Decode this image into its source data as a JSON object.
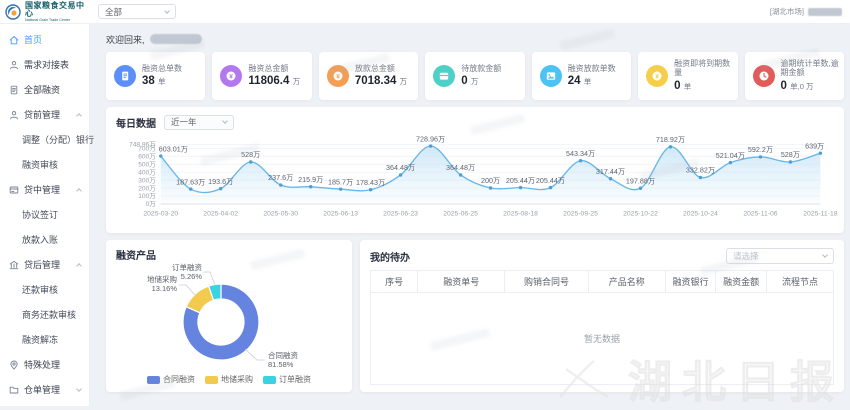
{
  "logo": {
    "title": "国家粮食交易中心",
    "subtitle": "National Grain Trade Center"
  },
  "header": {
    "market_select_value": "全部",
    "market_tag": "[湖北市场]"
  },
  "sidebar": {
    "items": [
      {
        "id": "home",
        "label": "首页",
        "icon": "home-icon",
        "level": 0,
        "active": true
      },
      {
        "id": "demand-table",
        "label": "需求对接表",
        "icon": "user-icon",
        "level": 0
      },
      {
        "id": "all-financing",
        "label": "全部融资",
        "icon": "document-icon",
        "level": 0
      },
      {
        "id": "pre-loan-mgmt",
        "label": "贷前管理",
        "icon": "user-icon",
        "level": 0,
        "group": true,
        "expanded": true
      },
      {
        "id": "adjust-bank",
        "label": "调整（分配）银行",
        "level": 1
      },
      {
        "id": "financing-review",
        "label": "融资审核",
        "level": 1
      },
      {
        "id": "mid-loan-mgmt",
        "label": "贷中管理",
        "icon": "card-icon",
        "level": 0,
        "group": true,
        "expanded": true
      },
      {
        "id": "agreement-sign",
        "label": "协议签订",
        "level": 1
      },
      {
        "id": "loan-entry",
        "label": "放款入账",
        "level": 1
      },
      {
        "id": "post-loan-mgmt",
        "label": "贷后管理",
        "icon": "bank-icon",
        "level": 0,
        "group": true,
        "expanded": true
      },
      {
        "id": "repay-review",
        "label": "还款审核",
        "level": 1
      },
      {
        "id": "business-repay-review",
        "label": "商务还款审核",
        "level": 1
      },
      {
        "id": "financing-unfreeze",
        "label": "融资解冻",
        "level": 1
      },
      {
        "id": "special-handling",
        "label": "特殊处理",
        "icon": "pin-icon",
        "level": 0
      },
      {
        "id": "warehouse-receipt-mgmt",
        "label": "仓单管理",
        "icon": "folder-icon",
        "level": 0,
        "group": true,
        "expanded": false
      }
    ]
  },
  "welcome": {
    "label": "欢迎回来,"
  },
  "stats": {
    "cards": [
      {
        "label": "融资总单数",
        "value": "38",
        "unit": "单",
        "color": "#5b8ff9",
        "icon": "document-icon",
        "glyph": "doc"
      },
      {
        "label": "融资总金额",
        "value": "11806.4",
        "unit": "万",
        "color": "#b478ee",
        "icon": "money-icon",
        "glyph": "coin"
      },
      {
        "label": "放款总金额",
        "value": "7018.34",
        "unit": "万",
        "color": "#f59e53",
        "icon": "coin-icon",
        "glyph": "coin"
      },
      {
        "label": "待放款金额",
        "value": "0",
        "unit": "万",
        "color": "#4ed0c6",
        "icon": "wallet-icon",
        "glyph": "wallet"
      },
      {
        "label": "融资放款单数",
        "value": "24",
        "unit": "单",
        "color": "#4cc3f2",
        "icon": "image-icon",
        "glyph": "image"
      },
      {
        "label": "融资即将到期数量",
        "value": "0",
        "unit": "单",
        "color": "#f6cf4a",
        "icon": "coin-icon",
        "glyph": "coin"
      },
      {
        "label": "逾期统计单数,逾期金额",
        "value": "0",
        "unit": "单,0 万",
        "color": "#e25b5b",
        "icon": "clock-icon",
        "glyph": "clock"
      }
    ]
  },
  "chart_data": [
    {
      "type": "area",
      "title": "每日数据",
      "range": "近一年",
      "x_labels": [
        "2025-03-20",
        "2025-04-02",
        "2025-05-30",
        "2025-06-13",
        "2025-06-23",
        "2025-06-25",
        "2025-08-18",
        "2025-09-25",
        "2025-10-22",
        "2025-10-24",
        "2025-11-06",
        "2025-11-18"
      ],
      "x_label_every": 2,
      "values": [
        603.01,
        187.63,
        193.6,
        528,
        237.6,
        215.9,
        185.7,
        178.43,
        364.48,
        728.96,
        364.48,
        200,
        205.44,
        205.44,
        543.34,
        317.44,
        197.88,
        718.92,
        332.82,
        521.04,
        592.2,
        528,
        639
      ],
      "point_labels": [
        "603.01万",
        "187.63万",
        "193.6万",
        "528万",
        "237.6万",
        "215.9万",
        "185.7万",
        "178.43万",
        "364.48万",
        "728.96万",
        "364.48万",
        "200万",
        "205.44万",
        "205.44万",
        "543.34万",
        "317.44万",
        "197.88万",
        "718.92万",
        "332.82万",
        "521.04万",
        "592.2万",
        "528万",
        "639万"
      ],
      "y_ticks": [
        {
          "v": 0,
          "label": "0万"
        },
        {
          "v": 100,
          "label": "100万"
        },
        {
          "v": 200,
          "label": "200万"
        },
        {
          "v": 300,
          "label": "300万"
        },
        {
          "v": 400,
          "label": "400万"
        },
        {
          "v": 500,
          "label": "500万"
        },
        {
          "v": 600,
          "label": "600万"
        },
        {
          "v": 700,
          "label": "700万"
        },
        {
          "v": 748.96,
          "label": "748.96万"
        }
      ],
      "ylim": [
        0,
        748.96
      ],
      "unit": "万",
      "line_color": "#68b7e8",
      "point_color": "#4d9fd8",
      "grid": true
    },
    {
      "type": "pie",
      "title": "融资产品",
      "slices": [
        {
          "name": "合同融资",
          "pct": 81.58,
          "label_line1": "合同融资",
          "label_line2": "81.58%",
          "color": "#6584e0"
        },
        {
          "name": "地储采购",
          "pct": 13.16,
          "label_line1": "地储采购",
          "label_line2": "13.16%",
          "color": "#f2ca4e"
        },
        {
          "name": "订单融资",
          "pct": 5.26,
          "label_line1": "订单融资",
          "label_line2": "5.26%",
          "color": "#3bd3e2"
        }
      ],
      "legend": [
        "合同融资",
        "地储采购",
        "订单融资"
      ],
      "legend_position": "bottom"
    }
  ],
  "todo": {
    "title": "我的待办",
    "select_placeholder": "请选择",
    "columns": [
      "序号",
      "融资单号",
      "购销合同号",
      "产品名称",
      "融资银行",
      "融资金额",
      "流程节点"
    ],
    "empty_text": "暂无数据"
  },
  "watermark": {
    "text": "湖北日报"
  }
}
